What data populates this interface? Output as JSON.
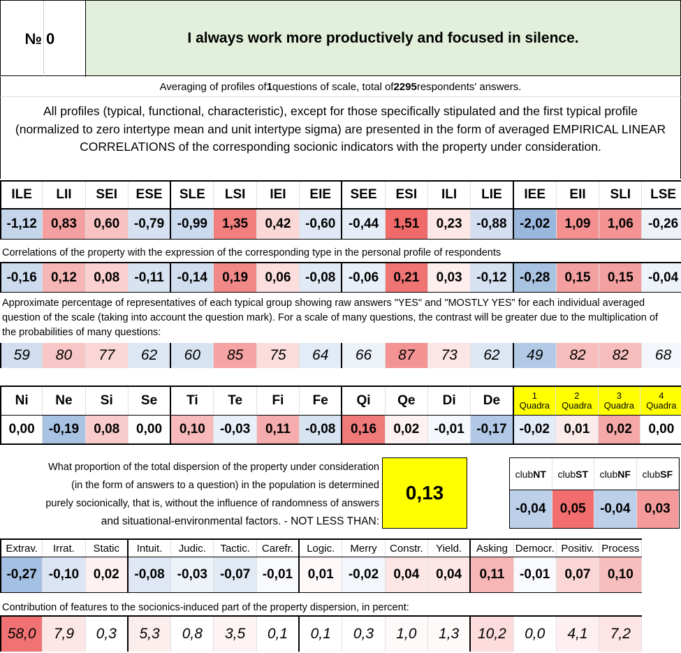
{
  "header": {
    "no_label": "№",
    "number": "0",
    "title": "I always work more productively and focused in silence."
  },
  "averaging": {
    "prefix": "Averaging of profiles of ",
    "questions": "1",
    "middle": " questions of scale, total of ",
    "answers": "2295",
    "suffix": " respondents' answers."
  },
  "description": "All profiles (typical, functional, characteristic), except for those specifically stipulated and the first typical profile (normalized to zero intertype mean and unit intertype sigma) are presented in the form of averaged EMPIRICAL LINEAR CORRELATIONS of the corresponding socionic indicators with the property under consideration.",
  "types": {
    "labels": [
      "ILE",
      "LII",
      "SEI",
      "ESE",
      "SLE",
      "LSI",
      "IEI",
      "EIE",
      "SEE",
      "ESI",
      "ILI",
      "LIE",
      "IEE",
      "EII",
      "SLI",
      "LSE"
    ],
    "values": [
      "-1,12",
      "0,83",
      "0,60",
      "-0,79",
      "-0,99",
      "1,35",
      "0,42",
      "-0,60",
      "-0,44",
      "1,51",
      "0,23",
      "-0,88",
      "-2,02",
      "1,09",
      "1,06",
      "-0,26"
    ],
    "colors": [
      "#c5d6ec",
      "#f5a0a0",
      "#f8c2c2",
      "#d6e1f1",
      "#cbdaee",
      "#f27e7e",
      "#fbd8d8",
      "#dfe8f4",
      "#e6edf7",
      "#f06a6a",
      "#fde7e7",
      "#d3dff0",
      "#9ab8de",
      "#f49090",
      "#f49393",
      "#edf2f9"
    ]
  },
  "correlation_note": "Correlations of the property with the expression of the corresponding type in the personal profile of respondents",
  "correlations": {
    "values": [
      "-0,16",
      "0,12",
      "0,08",
      "-0,11",
      "-0,14",
      "0,19",
      "0,06",
      "-0,08",
      "-0,06",
      "0,21",
      "0,03",
      "-0,12",
      "-0,28",
      "0,15",
      "0,15",
      "-0,04"
    ],
    "colors": [
      "#cddbee",
      "#f7b6b6",
      "#fad0d0",
      "#d8e3f2",
      "#d1def0",
      "#f28989",
      "#fcdede",
      "#e1e9f5",
      "#e8eff8",
      "#f07474",
      "#feeeee",
      "#d6e1f1",
      "#a9c3e3",
      "#f5a0a0",
      "#f5a0a0",
      "#eef3fa"
    ]
  },
  "percentage_note": "Approximate percentage of representatives of each typical group showing raw answers \"YES\" and \"MOSTLY YES\" for each individual averaged question of the scale (taking into account the question mark). For a scale of many questions, the contrast will be greater due to the multiplication of the probabilities of many questions:",
  "percentages": {
    "values": [
      "59",
      "80",
      "77",
      "62",
      "60",
      "85",
      "75",
      "64",
      "66",
      "87",
      "73",
      "62",
      "49",
      "82",
      "82",
      "68"
    ],
    "colors": [
      "#d2def0",
      "#f8c6c6",
      "#fad6d6",
      "#dde7f4",
      "#d8e3f2",
      "#f5a3a3",
      "#fcdddd",
      "#e3ebf6",
      "#edf2f9",
      "#f39393",
      "#fde5e5",
      "#dde7f4",
      "#b3cae6",
      "#f8bdbd",
      "#f8bdbd",
      "#f3f7fb"
    ]
  },
  "functions": {
    "labels": [
      "Ni",
      "Ne",
      "Si",
      "Se",
      "Ti",
      "Te",
      "Fi",
      "Fe",
      "Qi",
      "Qe",
      "Di",
      "De"
    ],
    "values": [
      "0,00",
      "-0,19",
      "0,08",
      "0,00",
      "0,10",
      "-0,03",
      "0,11",
      "-0,08",
      "0,16",
      "0,02",
      "-0,01",
      "-0,17"
    ],
    "colors": [
      "#ffffff",
      "#a9c3e3",
      "#f9cccc",
      "#ffffff",
      "#f7b9b9",
      "#e8eff8",
      "#f5acac",
      "#d8e3f2",
      "#f07a7a",
      "#fef1f1",
      "#f5f8fc",
      "#b1c8e6"
    ]
  },
  "quadras": {
    "numbers": [
      "1",
      "2",
      "3",
      "4"
    ],
    "label": "Quadra",
    "values": [
      "-0,02",
      "0,01",
      "0,02",
      "0,00"
    ],
    "colors": [
      "#e3ebf6",
      "#fcebeb",
      "#f5a8a8",
      "#ffffff"
    ]
  },
  "dispersion_note": [
    "What proportion of the total dispersion of the property under consideration",
    "(in the form of answers to a question) in the population is determined",
    "purely socionically, that is, without the influence of randomness of answers",
    "and situational-environmental factors. - NOT LESS THAN:"
  ],
  "dispersion_value": "0,13",
  "clubs": {
    "labels": [
      {
        "pre": "club",
        "bold": "NT"
      },
      {
        "pre": "club",
        "bold": "ST"
      },
      {
        "pre": "club",
        "bold": "NF"
      },
      {
        "pre": "club",
        "bold": "SF"
      }
    ],
    "values": [
      "-0,04",
      "0,05",
      "-0,04",
      "0,03"
    ],
    "colors": [
      "#bcd0ea",
      "#f26e6e",
      "#bcd0ea",
      "#f59a9a"
    ]
  },
  "traits": {
    "labels": [
      "Extrav.",
      "Irrat.",
      "Static",
      "Intuit.",
      "Judic.",
      "Tactic.",
      "Carefr.",
      "Logic.",
      "Merry",
      "Constr.",
      "Yield.",
      "Asking",
      "Democr.",
      "Positiv.",
      "Process"
    ],
    "values": [
      "-0,27",
      "-0,10",
      "0,02",
      "-0,08",
      "-0,03",
      "-0,07",
      "-0,01",
      "0,01",
      "-0,02",
      "0,04",
      "0,04",
      "0,11",
      "-0,01",
      "0,07",
      "0,10"
    ],
    "colors": [
      "#a3bfe1",
      "#dbe5f3",
      "#fdf1f1",
      "#dfe8f4",
      "#eef3fa",
      "#e1e9f5",
      "#f8fafd",
      "#fef8f8",
      "#f3f7fb",
      "#fce6e6",
      "#fce6e6",
      "#f7b6b6",
      "#f8fafd",
      "#fad6d6",
      "#f8bebe"
    ]
  },
  "contribution_note": "Contribution of features to the socionics-induced part of the property dispersion, in percent:",
  "contributions": {
    "values": [
      "58,0",
      "7,9",
      "0,3",
      "5,3",
      "0,8",
      "3,5",
      "0,1",
      "0,1",
      "0,3",
      "1,0",
      "1,3",
      "10,2",
      "0,0",
      "4,1",
      "7,2"
    ],
    "colors": [
      "#f07272",
      "#fce6e6",
      "#ffffff",
      "#fdeeee",
      "#ffffff",
      "#fef3f3",
      "#ffffff",
      "#ffffff",
      "#ffffff",
      "#fffafa",
      "#fffafa",
      "#fcdcdc",
      "#ffffff",
      "#fef0f0",
      "#fde5e5"
    ]
  }
}
